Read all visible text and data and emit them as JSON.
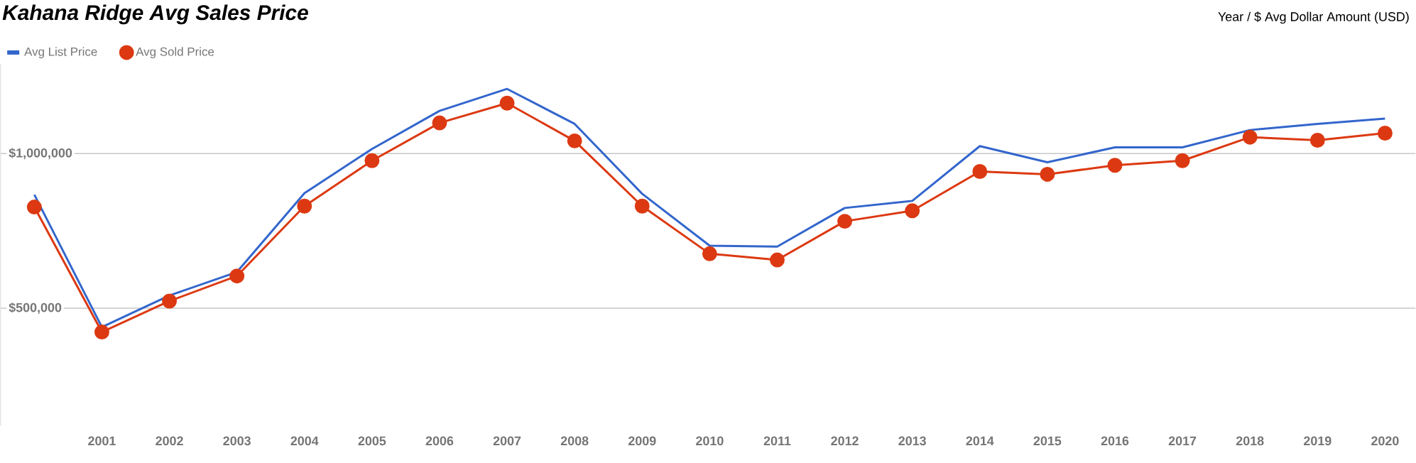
{
  "chart_data": {
    "type": "line",
    "title": "Kahana Ridge Avg Sales Price",
    "annotations": [
      "Year / $ Avg Dollar Amount (USD)"
    ],
    "x": [
      2000,
      2001,
      2002,
      2003,
      2004,
      2005,
      2006,
      2007,
      2008,
      2009,
      2010,
      2011,
      2012,
      2013,
      2014,
      2015,
      2016,
      2017,
      2018,
      2019,
      2020
    ],
    "series": [
      {
        "name": "Avg List Price",
        "color": "#3366cc",
        "marker": "none",
        "values": [
          867000,
          439000,
          541000,
          617000,
          872000,
          1015000,
          1138000,
          1209000,
          1096000,
          870000,
          702000,
          699000,
          824000,
          847000,
          1024000,
          972000,
          1020000,
          1020000,
          1076000,
          1096000,
          1113000
        ]
      },
      {
        "name": "Avg Sold Price",
        "color": "#dc3912",
        "marker": "circle",
        "values": [
          827000,
          423000,
          523000,
          604000,
          830000,
          977000,
          1099000,
          1163000,
          1041000,
          830000,
          676000,
          656000,
          781000,
          815000,
          942000,
          933000,
          962000,
          977000,
          1053000,
          1043000,
          1066000
        ]
      }
    ],
    "xlim": [
      1999.5,
      2020.45
    ],
    "xticks": [
      2001,
      2002,
      2003,
      2004,
      2005,
      2006,
      2007,
      2008,
      2009,
      2010,
      2011,
      2012,
      2013,
      2014,
      2015,
      2016,
      2017,
      2018,
      2019,
      2020
    ],
    "ylim": [
      120000,
      1290000
    ],
    "yticks": [
      {
        "value": 500000,
        "label": "$500,000"
      },
      {
        "value": 1000000,
        "label": "$1,000,000"
      }
    ],
    "grid": "y",
    "legend": "top left",
    "line_style": "solid"
  }
}
